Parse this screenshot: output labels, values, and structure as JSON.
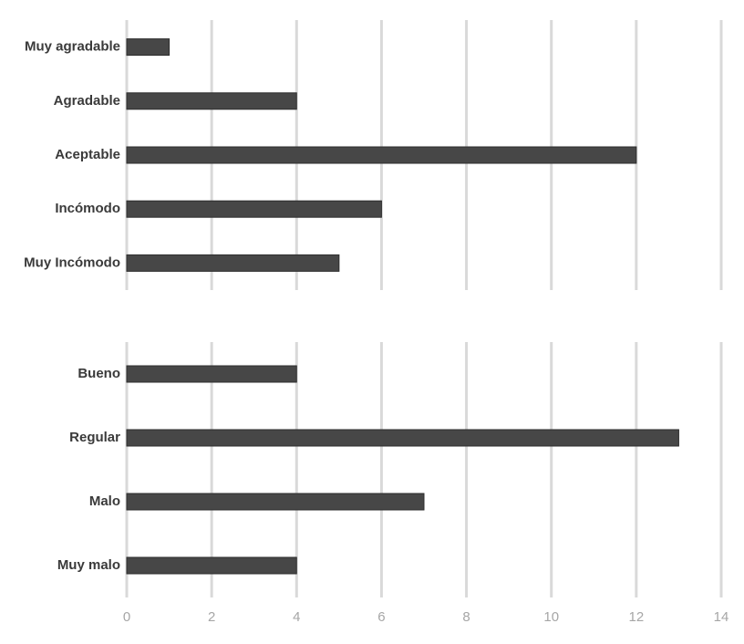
{
  "chart_data": [
    {
      "type": "bar",
      "orientation": "horizontal",
      "categories": [
        "Muy agradable",
        "Agradable",
        "Aceptable",
        "Incómodo",
        "Muy Incómodo"
      ],
      "values": [
        1,
        4,
        12,
        6,
        5
      ],
      "color": "#474747",
      "xlim": [
        0,
        14
      ],
      "xticks": [
        0,
        2,
        4,
        6,
        8,
        10,
        12,
        14
      ],
      "grid": true,
      "tick_labels": false
    },
    {
      "type": "bar",
      "orientation": "horizontal",
      "categories": [
        "Bueno",
        "Regular",
        "Malo",
        "Muy malo"
      ],
      "values": [
        4,
        13,
        7,
        4
      ],
      "color": "#474747",
      "xlim": [
        0,
        14
      ],
      "xticks": [
        0,
        2,
        4,
        6,
        8,
        10,
        12,
        14
      ],
      "grid": true,
      "tick_labels": true
    }
  ]
}
